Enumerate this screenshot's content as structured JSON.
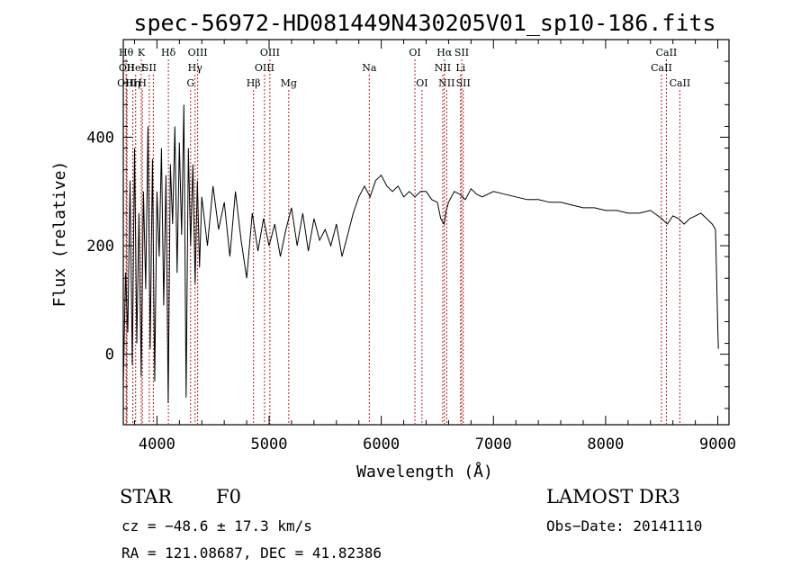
{
  "chart_data": {
    "type": "line",
    "title": "spec-56972-HD081449N430205V01_sp10-186.fits",
    "xlabel": "Wavelength (Å)",
    "ylabel": "Flux (relative)",
    "xlim": [
      3700,
      9100
    ],
    "ylim": [
      -130,
      580
    ],
    "xticks": [
      4000,
      5000,
      6000,
      7000,
      8000,
      9000
    ],
    "yticks": [
      0,
      200,
      400
    ],
    "series": [
      {
        "name": "spectrum",
        "x": [
          3700,
          3720,
          3740,
          3760,
          3780,
          3800,
          3820,
          3840,
          3860,
          3880,
          3900,
          3920,
          3940,
          3960,
          3980,
          4000,
          4020,
          4040,
          4060,
          4080,
          4100,
          4120,
          4140,
          4160,
          4180,
          4200,
          4220,
          4240,
          4260,
          4280,
          4300,
          4320,
          4340,
          4360,
          4380,
          4400,
          4450,
          4500,
          4550,
          4600,
          4650,
          4700,
          4750,
          4800,
          4850,
          4900,
          4950,
          5000,
          5050,
          5100,
          5150,
          5200,
          5250,
          5300,
          5350,
          5400,
          5450,
          5500,
          5550,
          5600,
          5650,
          5700,
          5750,
          5800,
          5850,
          5900,
          5950,
          6000,
          6050,
          6100,
          6150,
          6200,
          6250,
          6300,
          6350,
          6400,
          6450,
          6500,
          6530,
          6560,
          6580,
          6600,
          6650,
          6700,
          6750,
          6800,
          6850,
          6900,
          7000,
          7100,
          7200,
          7300,
          7400,
          7500,
          7600,
          7700,
          7800,
          7900,
          8000,
          8100,
          8200,
          8300,
          8400,
          8500,
          8550,
          8600,
          8650,
          8700,
          8750,
          8800,
          8850,
          8900,
          8950,
          8980,
          9000,
          9005
        ],
        "y": [
          -60,
          150,
          40,
          320,
          -20,
          380,
          20,
          260,
          -40,
          300,
          120,
          420,
          10,
          360,
          -50,
          300,
          180,
          380,
          90,
          330,
          -90,
          350,
          240,
          420,
          150,
          390,
          220,
          460,
          -80,
          380,
          200,
          350,
          130,
          320,
          160,
          290,
          200,
          310,
          230,
          280,
          180,
          300,
          210,
          140,
          260,
          190,
          250,
          200,
          240,
          180,
          230,
          270,
          200,
          260,
          190,
          250,
          210,
          230,
          200,
          240,
          180,
          220,
          260,
          290,
          310,
          290,
          320,
          330,
          310,
          300,
          310,
          290,
          300,
          290,
          300,
          300,
          285,
          280,
          250,
          240,
          265,
          280,
          300,
          295,
          285,
          305,
          295,
          290,
          300,
          295,
          290,
          285,
          285,
          280,
          280,
          275,
          270,
          270,
          265,
          265,
          260,
          260,
          265,
          250,
          240,
          255,
          250,
          240,
          250,
          255,
          260,
          250,
          240,
          230,
          50,
          10
        ]
      }
    ],
    "lines": [
      {
        "x": 3725,
        "label": "Hθ",
        "row": 0
      },
      {
        "x": 3730,
        "label": "OII",
        "row": 1
      },
      {
        "x": 3733,
        "label": "OIII",
        "row": 2
      },
      {
        "x": 3785,
        "label": "Hη",
        "row": 2
      },
      {
        "x": 3810,
        "label": "HeI",
        "row": 1
      },
      {
        "x": 3860,
        "label": "K",
        "row": 0
      },
      {
        "x": 3870,
        "label": "H",
        "row": 2
      },
      {
        "x": 3932,
        "label": "SII",
        "row": 1
      },
      {
        "x": 3968,
        "label": "",
        "row": 1
      },
      {
        "x": 4102,
        "label": "Hδ",
        "row": 0
      },
      {
        "x": 4300,
        "label": "G",
        "row": 2
      },
      {
        "x": 4340,
        "label": "Hγ",
        "row": 1
      },
      {
        "x": 4363,
        "label": "OIII",
        "row": 0
      },
      {
        "x": 4861,
        "label": "Hβ",
        "row": 2
      },
      {
        "x": 4959,
        "label": "OIII",
        "row": 1
      },
      {
        "x": 5007,
        "label": "OIII",
        "row": 0
      },
      {
        "x": 5175,
        "label": "Mg",
        "row": 2
      },
      {
        "x": 5893,
        "label": "Na",
        "row": 1
      },
      {
        "x": 6300,
        "label": "OI",
        "row": 0
      },
      {
        "x": 6363,
        "label": "OI",
        "row": 2
      },
      {
        "x": 6548,
        "label": "NII",
        "row": 1
      },
      {
        "x": 6563,
        "label": "Hα",
        "row": 0
      },
      {
        "x": 6583,
        "label": "NII",
        "row": 2
      },
      {
        "x": 6707,
        "label": "Li",
        "row": 1
      },
      {
        "x": 6717,
        "label": "SII",
        "row": 0
      },
      {
        "x": 6731,
        "label": "SII",
        "row": 2
      },
      {
        "x": 8498,
        "label": "CaII",
        "row": 1
      },
      {
        "x": 8542,
        "label": "CaII",
        "row": 0
      },
      {
        "x": 8662,
        "label": "CaII",
        "row": 2
      }
    ]
  },
  "info": {
    "object_type": "STAR",
    "subclass": "F0",
    "survey": "LAMOST DR3",
    "cz": "cz = −48.6 ± 17.3 km/s",
    "obs_date": "Obs−Date: 20141110",
    "coords": "RA = 121.08687, DEC =  41.82386"
  },
  "colors": {
    "line_marker": "#b22222",
    "spectrum": "#000000"
  }
}
